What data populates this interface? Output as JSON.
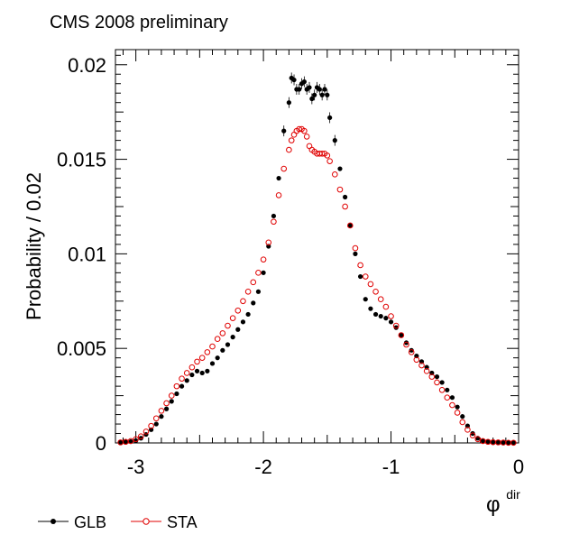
{
  "chart_data": {
    "type": "scatter",
    "title": "CMS 2008 preliminary",
    "xlabel_main": "φ",
    "xlabel_sup": "dir",
    "ylabel": "Probability / 0.02",
    "xlim": [
      -3.16,
      0.0
    ],
    "ylim": [
      0.0,
      0.0208
    ],
    "x_ticks": [
      -3,
      -2,
      -1,
      0
    ],
    "x_tick_labels": [
      "-3",
      "-2",
      "-1",
      "0"
    ],
    "y_ticks": [
      0,
      0.005,
      0.01,
      0.015,
      0.02
    ],
    "y_tick_labels": [
      "0",
      "0.005",
      "0.01",
      "0.015",
      "0.02"
    ],
    "grid": false,
    "legend_position": "bottom-left",
    "series": [
      {
        "name": "GLB",
        "marker": "filled-circle",
        "color": "#000000",
        "points": [
          [
            -3.12,
            3e-05
          ],
          [
            -3.08,
            5e-05
          ],
          [
            -3.04,
            7e-05
          ],
          [
            -3.0,
            0.00012
          ],
          [
            -2.96,
            0.00025
          ],
          [
            -2.92,
            0.00045
          ],
          [
            -2.88,
            0.0007
          ],
          [
            -2.84,
            0.001
          ],
          [
            -2.8,
            0.0014
          ],
          [
            -2.76,
            0.0018
          ],
          [
            -2.72,
            0.0022
          ],
          [
            -2.68,
            0.0026
          ],
          [
            -2.64,
            0.003
          ],
          [
            -2.6,
            0.0033
          ],
          [
            -2.56,
            0.0036
          ],
          [
            -2.52,
            0.0038
          ],
          [
            -2.48,
            0.0037
          ],
          [
            -2.44,
            0.0038
          ],
          [
            -2.4,
            0.0042
          ],
          [
            -2.36,
            0.0045
          ],
          [
            -2.32,
            0.0049
          ],
          [
            -2.28,
            0.0052
          ],
          [
            -2.24,
            0.0056
          ],
          [
            -2.2,
            0.006
          ],
          [
            -2.16,
            0.0064
          ],
          [
            -2.12,
            0.0068
          ],
          [
            -2.08,
            0.0074
          ],
          [
            -2.04,
            0.008
          ],
          [
            -2.0,
            0.009
          ],
          [
            -1.96,
            0.0104
          ],
          [
            -1.92,
            0.012
          ],
          [
            -1.88,
            0.014
          ],
          [
            -1.84,
            0.0165
          ],
          [
            -1.8,
            0.018
          ],
          [
            -1.78,
            0.0193
          ],
          [
            -1.76,
            0.0192
          ],
          [
            -1.74,
            0.0187
          ],
          [
            -1.72,
            0.0187
          ],
          [
            -1.7,
            0.019
          ],
          [
            -1.68,
            0.0191
          ],
          [
            -1.66,
            0.0187
          ],
          [
            -1.64,
            0.0188
          ],
          [
            -1.62,
            0.0182
          ],
          [
            -1.6,
            0.0184
          ],
          [
            -1.58,
            0.0188
          ],
          [
            -1.56,
            0.0187
          ],
          [
            -1.54,
            0.0184
          ],
          [
            -1.52,
            0.0187
          ],
          [
            -1.5,
            0.0184
          ],
          [
            -1.48,
            0.0172
          ],
          [
            -1.44,
            0.016
          ],
          [
            -1.4,
            0.0145
          ],
          [
            -1.36,
            0.013
          ],
          [
            -1.32,
            0.0115
          ],
          [
            -1.28,
            0.01
          ],
          [
            -1.24,
            0.0088
          ],
          [
            -1.2,
            0.0076
          ],
          [
            -1.16,
            0.0071
          ],
          [
            -1.12,
            0.0068
          ],
          [
            -1.08,
            0.0067
          ],
          [
            -1.04,
            0.0066
          ],
          [
            -1.0,
            0.0064
          ],
          [
            -0.96,
            0.0061
          ],
          [
            -0.92,
            0.0057
          ],
          [
            -0.88,
            0.0053
          ],
          [
            -0.84,
            0.0049
          ],
          [
            -0.8,
            0.0046
          ],
          [
            -0.76,
            0.0043
          ],
          [
            -0.72,
            0.004
          ],
          [
            -0.68,
            0.0037
          ],
          [
            -0.64,
            0.0035
          ],
          [
            -0.6,
            0.0032
          ],
          [
            -0.56,
            0.0028
          ],
          [
            -0.52,
            0.0024
          ],
          [
            -0.48,
            0.0019
          ],
          [
            -0.44,
            0.0014
          ],
          [
            -0.4,
            0.0009
          ],
          [
            -0.36,
            0.0005
          ],
          [
            -0.32,
            0.00025
          ],
          [
            -0.28,
            0.00012
          ],
          [
            -0.24,
            6e-05
          ],
          [
            -0.2,
            4e-05
          ],
          [
            -0.16,
            3e-05
          ],
          [
            -0.12,
            2e-05
          ],
          [
            -0.08,
            1e-05
          ],
          [
            -0.04,
            1e-05
          ]
        ]
      },
      {
        "name": "STA",
        "marker": "open-circle",
        "color": "#e00000",
        "points": [
          [
            -3.12,
            3e-05
          ],
          [
            -3.08,
            6e-05
          ],
          [
            -3.04,
            0.0001
          ],
          [
            -3.0,
            0.0002
          ],
          [
            -2.96,
            0.00035
          ],
          [
            -2.92,
            0.0006
          ],
          [
            -2.88,
            0.0009
          ],
          [
            -2.84,
            0.0013
          ],
          [
            -2.8,
            0.0017
          ],
          [
            -2.76,
            0.0021
          ],
          [
            -2.72,
            0.0025
          ],
          [
            -2.68,
            0.003
          ],
          [
            -2.64,
            0.0034
          ],
          [
            -2.6,
            0.0037
          ],
          [
            -2.56,
            0.004
          ],
          [
            -2.52,
            0.0043
          ],
          [
            -2.48,
            0.0045
          ],
          [
            -2.44,
            0.0048
          ],
          [
            -2.4,
            0.0051
          ],
          [
            -2.36,
            0.0055
          ],
          [
            -2.32,
            0.0058
          ],
          [
            -2.28,
            0.0062
          ],
          [
            -2.24,
            0.0066
          ],
          [
            -2.2,
            0.007
          ],
          [
            -2.16,
            0.0075
          ],
          [
            -2.12,
            0.008
          ],
          [
            -2.08,
            0.0085
          ],
          [
            -2.04,
            0.009
          ],
          [
            -2.0,
            0.0097
          ],
          [
            -1.96,
            0.0106
          ],
          [
            -1.92,
            0.0117
          ],
          [
            -1.88,
            0.0131
          ],
          [
            -1.84,
            0.0145
          ],
          [
            -1.8,
            0.0155
          ],
          [
            -1.78,
            0.016
          ],
          [
            -1.76,
            0.0163
          ],
          [
            -1.74,
            0.0165
          ],
          [
            -1.72,
            0.0166
          ],
          [
            -1.7,
            0.0166
          ],
          [
            -1.68,
            0.0165
          ],
          [
            -1.66,
            0.0162
          ],
          [
            -1.64,
            0.0157
          ],
          [
            -1.62,
            0.0155
          ],
          [
            -1.6,
            0.0154
          ],
          [
            -1.58,
            0.0153
          ],
          [
            -1.56,
            0.0153
          ],
          [
            -1.54,
            0.0153
          ],
          [
            -1.52,
            0.0153
          ],
          [
            -1.5,
            0.0152
          ],
          [
            -1.48,
            0.0149
          ],
          [
            -1.44,
            0.0142
          ],
          [
            -1.4,
            0.0134
          ],
          [
            -1.36,
            0.0125
          ],
          [
            -1.32,
            0.0115
          ],
          [
            -1.28,
            0.0103
          ],
          [
            -1.24,
            0.0094
          ],
          [
            -1.2,
            0.0088
          ],
          [
            -1.16,
            0.0084
          ],
          [
            -1.12,
            0.008
          ],
          [
            -1.08,
            0.0076
          ],
          [
            -1.04,
            0.0072
          ],
          [
            -1.0,
            0.0067
          ],
          [
            -0.96,
            0.0062
          ],
          [
            -0.92,
            0.0057
          ],
          [
            -0.88,
            0.0052
          ],
          [
            -0.84,
            0.0048
          ],
          [
            -0.8,
            0.0044
          ],
          [
            -0.76,
            0.0041
          ],
          [
            -0.72,
            0.0038
          ],
          [
            -0.68,
            0.0035
          ],
          [
            -0.64,
            0.0032
          ],
          [
            -0.6,
            0.0028
          ],
          [
            -0.56,
            0.0024
          ],
          [
            -0.52,
            0.002
          ],
          [
            -0.48,
            0.0016
          ],
          [
            -0.44,
            0.0011
          ],
          [
            -0.4,
            0.0007
          ],
          [
            -0.36,
            0.0004
          ],
          [
            -0.32,
            0.0002
          ],
          [
            -0.28,
            0.0001
          ],
          [
            -0.24,
            6e-05
          ],
          [
            -0.2,
            4e-05
          ],
          [
            -0.16,
            3e-05
          ],
          [
            -0.12,
            2e-05
          ],
          [
            -0.08,
            1e-05
          ],
          [
            -0.04,
            1e-05
          ]
        ]
      }
    ]
  }
}
